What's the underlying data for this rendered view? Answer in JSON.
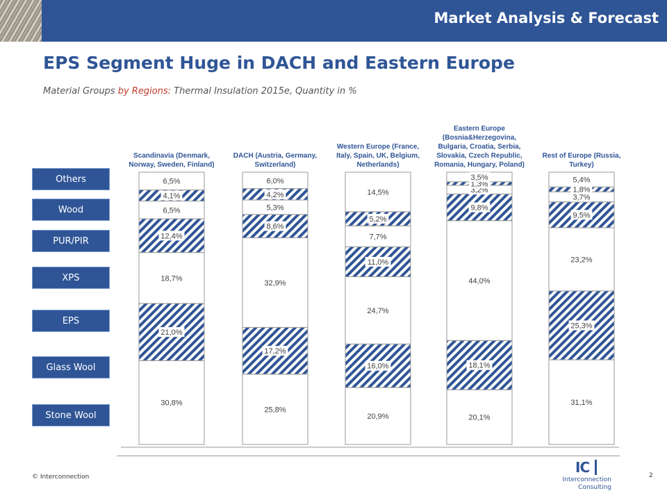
{
  "header": {
    "title": "Market Analysis & Forecast"
  },
  "page": {
    "title": "EPS Segment Huge in DACH and Eastern Europe",
    "subtitle_pre": "Material Groups ",
    "subtitle_highlight": "by Regions:",
    "subtitle_post": " Thermal Insulation 2015e, Quantity in %"
  },
  "legend_labels": [
    "Others",
    "Wood",
    "PUR/PIR",
    "XPS",
    "EPS",
    "Glass Wool",
    "Stone Wool"
  ],
  "footer": {
    "copyright": "© Interconnection",
    "page_number": "2",
    "logo_mark": "IC",
    "logo_line1": "Interconnection",
    "logo_line2": "Consulting"
  },
  "colors": {
    "brand": "#2f5596",
    "hatch": "#2f5596",
    "border": "#999999",
    "highlight": "#c0392b"
  },
  "chart_data": {
    "type": "bar",
    "stacked": true,
    "percent_stacked": true,
    "ylim": [
      0,
      100
    ],
    "grid": false,
    "categories": [
      [
        "Scandinavia (Denmark,",
        "Norway, Sweden, Finland)"
      ],
      [
        "DACH (Austria, Germany,",
        "Switzerland)"
      ],
      [
        "Western Europe (France,",
        "Italy, Spain, UK, Belgium,",
        "Netherlands)"
      ],
      [
        "Eastern Europe",
        "(Bosnia&Herzegovina,",
        "Bulgaria, Croatia, Serbia,",
        "Slovakia, Czech Republic,",
        "Romania, Hungary, Poland)"
      ],
      [
        "Rest of Europe (Russia,",
        "Turkey)"
      ]
    ],
    "series": [
      {
        "name": "Stone Wool",
        "pattern": "plain",
        "values": [
          30.8,
          25.8,
          20.9,
          20.1,
          31.1
        ],
        "labels": [
          "30,8%",
          "25,8%",
          "20,9%",
          "20,1%",
          "31,1%"
        ]
      },
      {
        "name": "Glass Wool",
        "pattern": "hatched",
        "values": [
          21.0,
          17.2,
          16.0,
          18.1,
          25.3
        ],
        "labels": [
          "21,0%",
          "17,2%",
          "16,0%",
          "18,1%",
          "25,3%"
        ]
      },
      {
        "name": "EPS",
        "pattern": "plain",
        "values": [
          18.7,
          32.9,
          24.7,
          44.0,
          23.2
        ],
        "labels": [
          "18,7%",
          "32,9%",
          "24,7%",
          "44,0%",
          "23,2%"
        ]
      },
      {
        "name": "XPS",
        "pattern": "hatched",
        "values": [
          12.4,
          8.6,
          11.0,
          9.8,
          9.5
        ],
        "labels": [
          "12,4%",
          "8,6%",
          "11,0%",
          "9,8%",
          "9,5%"
        ]
      },
      {
        "name": "PUR/PIR",
        "pattern": "plain",
        "values": [
          6.5,
          5.3,
          7.7,
          3.2,
          3.7
        ],
        "labels": [
          "6,5%",
          "5,3%",
          "7,7%",
          "3,2%",
          "3,7%"
        ]
      },
      {
        "name": "Wood",
        "pattern": "hatched",
        "values": [
          4.1,
          4.2,
          5.2,
          1.3,
          1.8
        ],
        "labels": [
          "4,1%",
          "4,2%",
          "5,2%",
          "1,3%",
          "1,8%"
        ]
      },
      {
        "name": "Others",
        "pattern": "plain",
        "values": [
          6.5,
          6.0,
          14.5,
          3.5,
          5.4
        ],
        "labels": [
          "6,5%",
          "6,0%",
          "14,5%",
          "3,5%",
          "5,4%"
        ]
      }
    ]
  }
}
